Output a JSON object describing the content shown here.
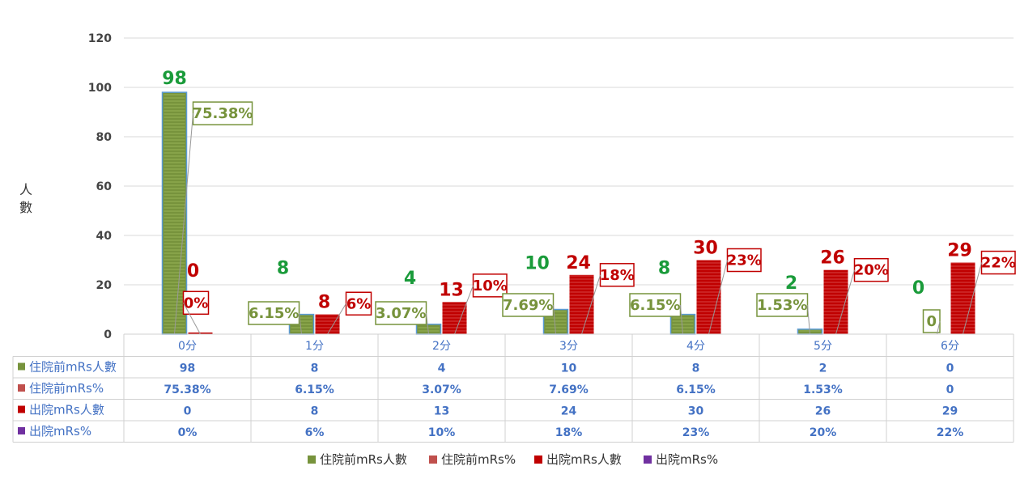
{
  "chart_data": {
    "type": "bar",
    "ylabel": "人\n數",
    "ylim": [
      0,
      120
    ],
    "yticks": [
      0,
      20,
      40,
      60,
      80,
      100,
      120
    ],
    "categories": [
      "0分",
      "1分",
      "2分",
      "3分",
      "4分",
      "5分",
      "6分"
    ],
    "series": [
      {
        "name": "住院前mRs人數",
        "values": [
          98,
          8,
          4,
          10,
          8,
          2,
          0
        ],
        "color": "#77933c",
        "labels": [
          "98",
          "8",
          "4",
          "10",
          "8",
          "2",
          "0"
        ]
      },
      {
        "name": "住院前mRs%",
        "values": [
          75.38,
          6.15,
          3.07,
          7.69,
          6.15,
          1.53,
          0
        ],
        "color": "#c0504d",
        "labels": [
          "75.38%",
          "6.15%",
          "3.07%",
          "7.69%",
          "6.15%",
          "1.53%",
          "0"
        ]
      },
      {
        "name": "出院mRs人數",
        "values": [
          0,
          8,
          13,
          24,
          30,
          26,
          29
        ],
        "color": "#c00000",
        "labels": [
          "0",
          "8",
          "13",
          "24",
          "30",
          "26",
          "29"
        ]
      },
      {
        "name": "出院mRs%",
        "values": [
          0,
          6,
          10,
          18,
          23,
          20,
          22
        ],
        "color": "#7030a0",
        "labels": [
          "0%",
          "6%",
          "10%",
          "18%",
          "23%",
          "20%",
          "22%"
        ]
      }
    ],
    "grid": true,
    "legend": "bottom",
    "data_table": true
  },
  "colors": {
    "green_label": "#1a9b3a",
    "red_label": "#c00000",
    "olive_label": "#77933c",
    "table_text": "#4472c4"
  }
}
